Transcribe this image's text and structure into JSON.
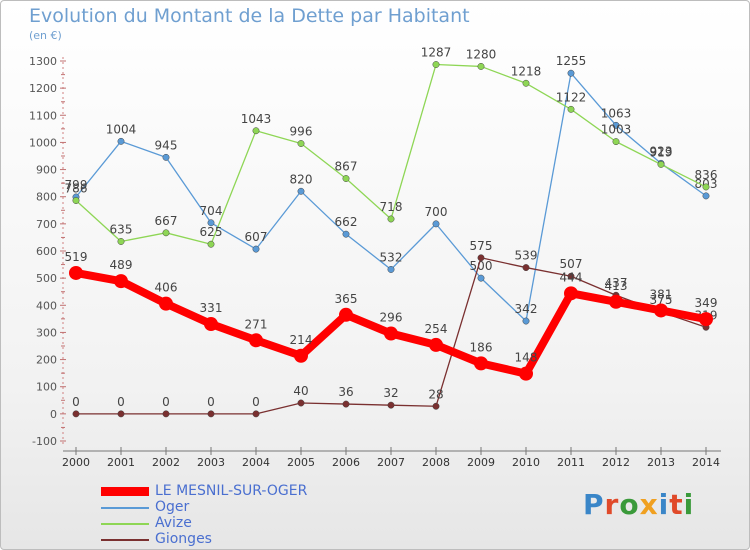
{
  "title": "Evolution du Montant de la Dette par Habitant",
  "subtitle": "(en €)",
  "brand": {
    "logo_text": "Proxiti",
    "letter_colors": [
      "#3a86c8",
      "#e04a2a",
      "#3a9a3a",
      "#f0a020",
      "#3a86c8",
      "#e04a2a",
      "#3a9a3a"
    ]
  },
  "chart_data": {
    "type": "line",
    "x": [
      "2000",
      "2001",
      "2002",
      "2003",
      "2004",
      "2005",
      "2006",
      "2007",
      "2008",
      "2009",
      "2010",
      "2011",
      "2012",
      "2013",
      "2014"
    ],
    "ylim": [
      -100,
      1300
    ],
    "yticks": [
      -100,
      0,
      100,
      200,
      300,
      400,
      500,
      600,
      700,
      800,
      900,
      1000,
      1100,
      1200,
      1300
    ],
    "grid": false,
    "legend_position": "bottom-left",
    "series": [
      {
        "name": "Oger",
        "color": "#5a9ad6",
        "values": [
          799,
          1004,
          945,
          704,
          607,
          820,
          662,
          532,
          700,
          500,
          342,
          1255,
          1063,
          923,
          803
        ]
      },
      {
        "name": "Avize",
        "color": "#8ed655",
        "values": [
          786,
          635,
          667,
          625,
          1043,
          996,
          867,
          718,
          1287,
          1280,
          1218,
          1122,
          1003,
          919,
          836
        ]
      },
      {
        "name": "Gionges",
        "color": "#7a3030",
        "values": [
          0,
          0,
          0,
          0,
          0,
          40,
          36,
          32,
          28,
          575,
          539,
          507,
          437,
          375,
          319
        ]
      },
      {
        "name": "LE MESNIL-SUR-OGER",
        "color": "#ff0000",
        "values": [
          519,
          489,
          406,
          331,
          271,
          214,
          365,
          296,
          254,
          186,
          148,
          444,
          413,
          381,
          349
        ]
      }
    ]
  },
  "legend": [
    {
      "label": "LE MESNIL-SUR-OGER",
      "color": "#ff0000",
      "thick": true
    },
    {
      "label": "Oger",
      "color": "#5a9ad6",
      "thick": false
    },
    {
      "label": "Avize",
      "color": "#8ed655",
      "thick": false
    },
    {
      "label": "Gionges",
      "color": "#7a3030",
      "thick": false
    }
  ]
}
